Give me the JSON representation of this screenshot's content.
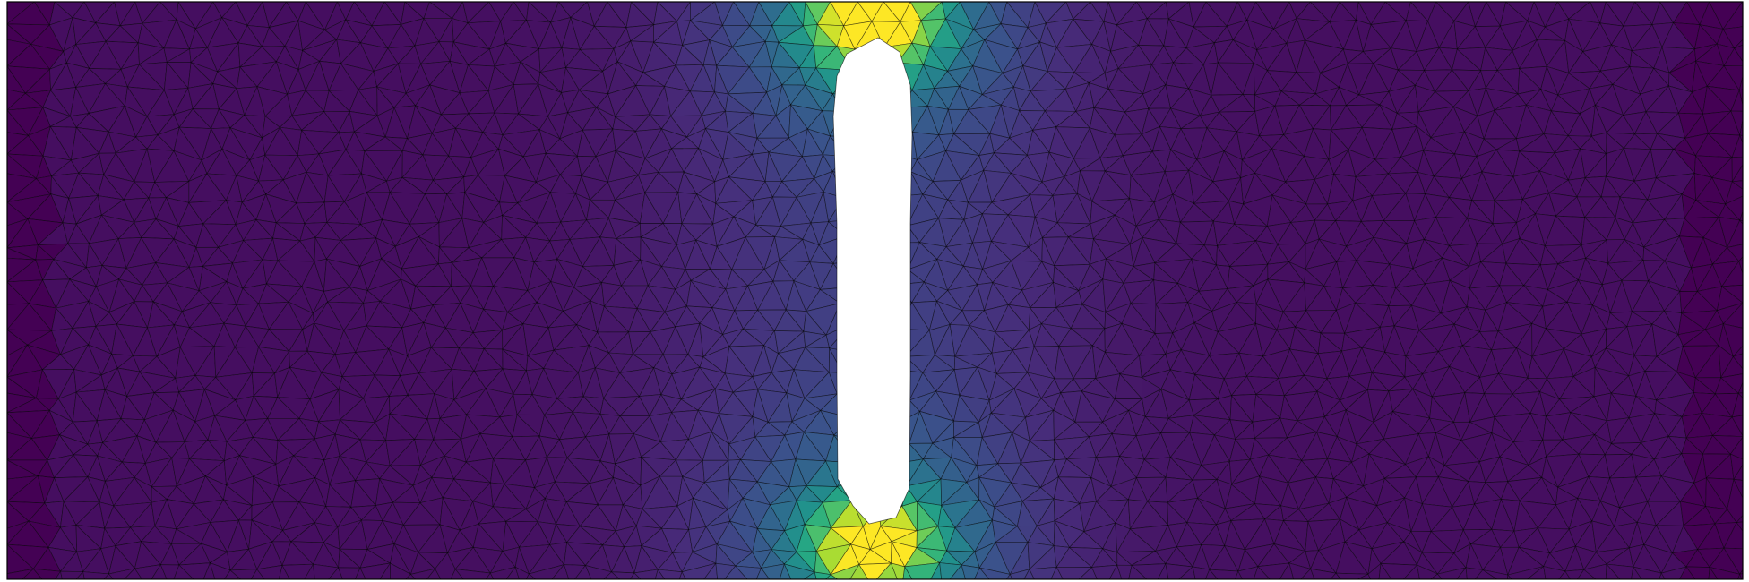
{
  "figure": {
    "kind": "finite-element-field-plot",
    "colormap": "viridis",
    "mesh": "triangular",
    "hole_shape": "slot",
    "colors": {
      "background": "#ffffff",
      "mesh_edge": "#000000",
      "border": "#000000",
      "low": "#440154",
      "mid": "#21918c",
      "high": "#fde725"
    }
  }
}
